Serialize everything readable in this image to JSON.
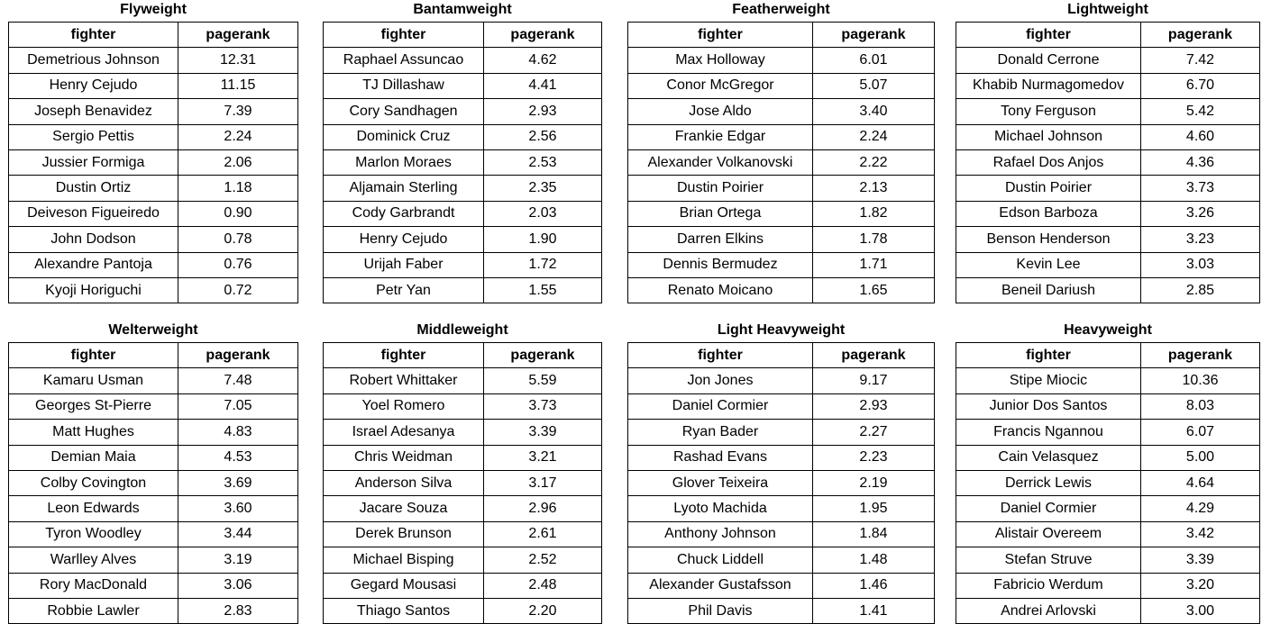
{
  "columns": {
    "fighter": "fighter",
    "pagerank": "pagerank"
  },
  "divisions": [
    {
      "title": "Flyweight",
      "rows": [
        [
          "Demetrious Johnson",
          "12.31"
        ],
        [
          "Henry Cejudo",
          "11.15"
        ],
        [
          "Joseph Benavidez",
          "7.39"
        ],
        [
          "Sergio Pettis",
          "2.24"
        ],
        [
          "Jussier Formiga",
          "2.06"
        ],
        [
          "Dustin Ortiz",
          "1.18"
        ],
        [
          "Deiveson Figueiredo",
          "0.90"
        ],
        [
          "John Dodson",
          "0.78"
        ],
        [
          "Alexandre Pantoja",
          "0.76"
        ],
        [
          "Kyoji Horiguchi",
          "0.72"
        ]
      ]
    },
    {
      "title": "Bantamweight",
      "rows": [
        [
          "Raphael Assuncao",
          "4.62"
        ],
        [
          "TJ Dillashaw",
          "4.41"
        ],
        [
          "Cory Sandhagen",
          "2.93"
        ],
        [
          "Dominick Cruz",
          "2.56"
        ],
        [
          "Marlon Moraes",
          "2.53"
        ],
        [
          "Aljamain Sterling",
          "2.35"
        ],
        [
          "Cody Garbrandt",
          "2.03"
        ],
        [
          "Henry Cejudo",
          "1.90"
        ],
        [
          "Urijah Faber",
          "1.72"
        ],
        [
          "Petr Yan",
          "1.55"
        ]
      ]
    },
    {
      "title": "Featherweight",
      "rows": [
        [
          "Max Holloway",
          "6.01"
        ],
        [
          "Conor McGregor",
          "5.07"
        ],
        [
          "Jose Aldo",
          "3.40"
        ],
        [
          "Frankie Edgar",
          "2.24"
        ],
        [
          "Alexander Volkanovski",
          "2.22"
        ],
        [
          "Dustin Poirier",
          "2.13"
        ],
        [
          "Brian Ortega",
          "1.82"
        ],
        [
          "Darren Elkins",
          "1.78"
        ],
        [
          "Dennis Bermudez",
          "1.71"
        ],
        [
          "Renato Moicano",
          "1.65"
        ]
      ]
    },
    {
      "title": "Lightweight",
      "rows": [
        [
          "Donald Cerrone",
          "7.42"
        ],
        [
          "Khabib Nurmagomedov",
          "6.70"
        ],
        [
          "Tony Ferguson",
          "5.42"
        ],
        [
          "Michael Johnson",
          "4.60"
        ],
        [
          "Rafael Dos Anjos",
          "4.36"
        ],
        [
          "Dustin Poirier",
          "3.73"
        ],
        [
          "Edson Barboza",
          "3.26"
        ],
        [
          "Benson Henderson",
          "3.23"
        ],
        [
          "Kevin Lee",
          "3.03"
        ],
        [
          "Beneil Dariush",
          "2.85"
        ]
      ]
    },
    {
      "title": "Welterweight",
      "rows": [
        [
          "Kamaru Usman",
          "7.48"
        ],
        [
          "Georges St-Pierre",
          "7.05"
        ],
        [
          "Matt Hughes",
          "4.83"
        ],
        [
          "Demian Maia",
          "4.53"
        ],
        [
          "Colby Covington",
          "3.69"
        ],
        [
          "Leon Edwards",
          "3.60"
        ],
        [
          "Tyron Woodley",
          "3.44"
        ],
        [
          "Warlley Alves",
          "3.19"
        ],
        [
          "Rory MacDonald",
          "3.06"
        ],
        [
          "Robbie Lawler",
          "2.83"
        ]
      ]
    },
    {
      "title": "Middleweight",
      "rows": [
        [
          "Robert Whittaker",
          "5.59"
        ],
        [
          "Yoel Romero",
          "3.73"
        ],
        [
          "Israel Adesanya",
          "3.39"
        ],
        [
          "Chris Weidman",
          "3.21"
        ],
        [
          "Anderson Silva",
          "3.17"
        ],
        [
          "Jacare Souza",
          "2.96"
        ],
        [
          "Derek Brunson",
          "2.61"
        ],
        [
          "Michael Bisping",
          "2.52"
        ],
        [
          "Gegard Mousasi",
          "2.48"
        ],
        [
          "Thiago Santos",
          "2.20"
        ]
      ]
    },
    {
      "title": "Light Heavyweight",
      "rows": [
        [
          "Jon Jones",
          "9.17"
        ],
        [
          "Daniel Cormier",
          "2.93"
        ],
        [
          "Ryan Bader",
          "2.27"
        ],
        [
          "Rashad Evans",
          "2.23"
        ],
        [
          "Glover Teixeira",
          "2.19"
        ],
        [
          "Lyoto Machida",
          "1.95"
        ],
        [
          "Anthony Johnson",
          "1.84"
        ],
        [
          "Chuck Liddell",
          "1.48"
        ],
        [
          "Alexander Gustafsson",
          "1.46"
        ],
        [
          "Phil Davis",
          "1.41"
        ]
      ]
    },
    {
      "title": "Heavyweight",
      "rows": [
        [
          "Stipe Miocic",
          "10.36"
        ],
        [
          "Junior Dos Santos",
          "8.03"
        ],
        [
          "Francis Ngannou",
          "6.07"
        ],
        [
          "Cain Velasquez",
          "5.00"
        ],
        [
          "Derrick Lewis",
          "4.64"
        ],
        [
          "Daniel Cormier",
          "4.29"
        ],
        [
          "Alistair Overeem",
          "3.42"
        ],
        [
          "Stefan Struve",
          "3.39"
        ],
        [
          "Fabricio Werdum",
          "3.20"
        ],
        [
          "Andrei Arlovski",
          "3.00"
        ]
      ]
    }
  ]
}
